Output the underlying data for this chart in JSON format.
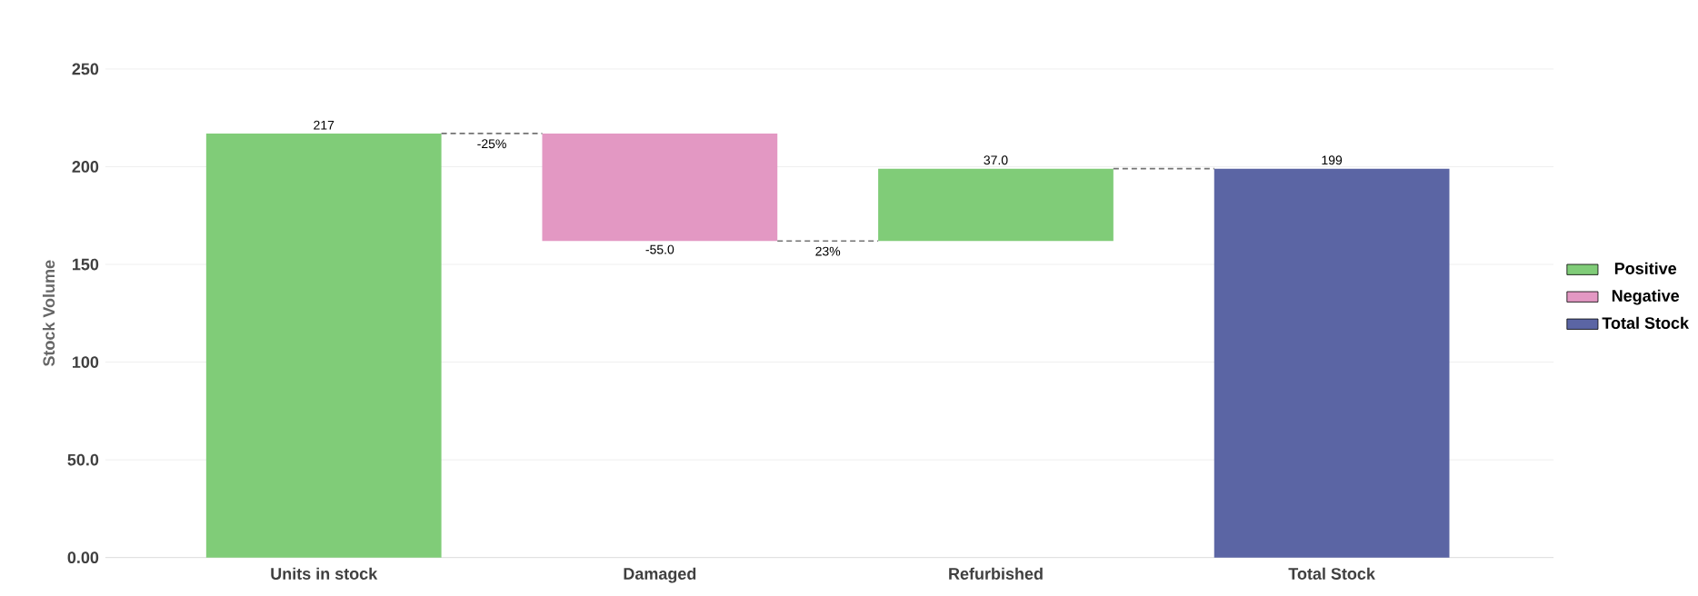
{
  "chart_data": {
    "type": "bar",
    "categories": [
      "Units in stock",
      "Damaged",
      "Refurbished",
      "Total Stock"
    ],
    "series": [
      {
        "name": "Positive",
        "color": "#80cc78",
        "values": [
          217,
          null,
          37,
          null
        ],
        "base": [
          0,
          null,
          162,
          null
        ],
        "value_labels": [
          "217",
          null,
          "37.0",
          null
        ]
      },
      {
        "name": "Negative",
        "color": "#e398c3",
        "values": [
          null,
          -55,
          null,
          null
        ],
        "base": [
          null,
          217,
          null,
          null
        ],
        "value_labels": [
          null,
          "-55.0",
          null,
          null
        ]
      },
      {
        "name": "Total Stock",
        "color": "#5b65a4",
        "values": [
          null,
          null,
          null,
          199
        ],
        "base": [
          null,
          null,
          null,
          0
        ],
        "value_labels": [
          null,
          null,
          null,
          "199"
        ]
      }
    ],
    "ylabel": "Stock Volume",
    "ylim": [
      0,
      250
    ],
    "yticks": [
      {
        "value": 0,
        "label": "0.00"
      },
      {
        "value": 50,
        "label": "50.0"
      },
      100,
      150,
      200,
      250
    ],
    "annotations": [
      "-25%",
      "23%"
    ],
    "grid": "y",
    "legend": "right"
  }
}
